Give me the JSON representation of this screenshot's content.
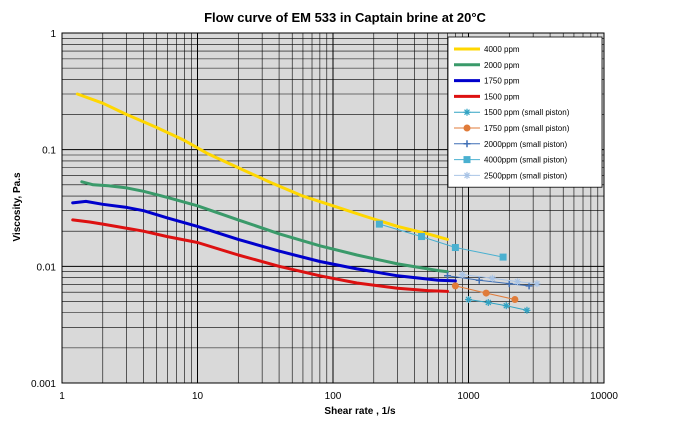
{
  "chart_data": {
    "type": "line",
    "title": "Flow curve of EM 533 in Captain brine at 20°C",
    "xlabel": "Shear rate , 1/s",
    "ylabel": "Viscosity, Pa.s",
    "xscale": "log",
    "yscale": "log",
    "xlim": [
      1,
      10000
    ],
    "ylim": [
      0.001,
      1
    ],
    "x_ticks": [
      1,
      10,
      100,
      1000,
      10000
    ],
    "x_tick_labels": [
      "1",
      "10",
      "100",
      "1000",
      "10000"
    ],
    "y_ticks": [
      0.001,
      0.01,
      0.1,
      1
    ],
    "y_tick_labels": [
      "0.001",
      "0.01",
      "0.1",
      "1"
    ],
    "grid": true,
    "plot_background": "#d9d9d9",
    "legend_position": "top-right",
    "series": [
      {
        "name": "4000 ppm",
        "color": "#ffd700",
        "width": 3,
        "marker": "none",
        "x": [
          1.3,
          2,
          3,
          5,
          8,
          12,
          20,
          35,
          60,
          100,
          170,
          300,
          500,
          700
        ],
        "y": [
          0.3,
          0.25,
          0.2,
          0.155,
          0.12,
          0.092,
          0.07,
          0.052,
          0.04,
          0.033,
          0.027,
          0.022,
          0.019,
          0.017
        ]
      },
      {
        "name": "2000 ppm",
        "color": "#3a9a6a",
        "width": 3,
        "marker": "none",
        "x": [
          1.4,
          1.7,
          2.2,
          3,
          4,
          6,
          10,
          20,
          40,
          80,
          150,
          300,
          600,
          700
        ],
        "y": [
          0.053,
          0.05,
          0.049,
          0.047,
          0.044,
          0.039,
          0.033,
          0.025,
          0.019,
          0.015,
          0.0125,
          0.0105,
          0.0092,
          0.009
        ]
      },
      {
        "name": "1750 ppm",
        "color": "#0000cc",
        "width": 3,
        "marker": "none",
        "x": [
          1.2,
          1.5,
          2,
          3,
          4,
          6,
          10,
          20,
          40,
          80,
          150,
          300,
          600,
          800
        ],
        "y": [
          0.035,
          0.036,
          0.034,
          0.032,
          0.03,
          0.026,
          0.022,
          0.017,
          0.0135,
          0.011,
          0.0095,
          0.0083,
          0.0076,
          0.0075
        ]
      },
      {
        "name": "1500 ppm",
        "color": "#dd1111",
        "width": 3,
        "marker": "none",
        "x": [
          1.2,
          1.6,
          2,
          2.5,
          4,
          6,
          10,
          20,
          40,
          80,
          150,
          300,
          500,
          700
        ],
        "y": [
          0.025,
          0.024,
          0.023,
          0.022,
          0.02,
          0.018,
          0.016,
          0.0125,
          0.01,
          0.0083,
          0.0072,
          0.0065,
          0.0062,
          0.0061
        ]
      },
      {
        "name": "1500 ppm (small piston)",
        "color": "#31a3c3",
        "width": 1,
        "marker": "star",
        "x": [
          1000,
          1400,
          1900,
          2700
        ],
        "y": [
          0.0052,
          0.0049,
          0.0046,
          0.0042
        ]
      },
      {
        "name": "1750 ppm (small piston)",
        "color": "#e07b39",
        "width": 1,
        "marker": "circle",
        "x": [
          800,
          1350,
          2200
        ],
        "y": [
          0.0068,
          0.0059,
          0.0052
        ]
      },
      {
        "name": "2000ppm (small piston)",
        "color": "#3f6fb5",
        "width": 1,
        "marker": "plus",
        "x": [
          700,
          1200,
          2000,
          2800
        ],
        "y": [
          0.0083,
          0.0076,
          0.0071,
          0.0068
        ]
      },
      {
        "name": "4000ppm (small piston)",
        "color": "#4ab0d0",
        "width": 1,
        "marker": "square",
        "x": [
          220,
          450,
          800,
          1800
        ],
        "y": [
          0.023,
          0.018,
          0.0145,
          0.012
        ]
      },
      {
        "name": "2500ppm (small piston)",
        "color": "#a9c4e6",
        "width": 1,
        "marker": "star",
        "x": [
          900,
          1500,
          2300,
          3200
        ],
        "y": [
          0.0085,
          0.0079,
          0.0074,
          0.0071
        ]
      }
    ]
  }
}
